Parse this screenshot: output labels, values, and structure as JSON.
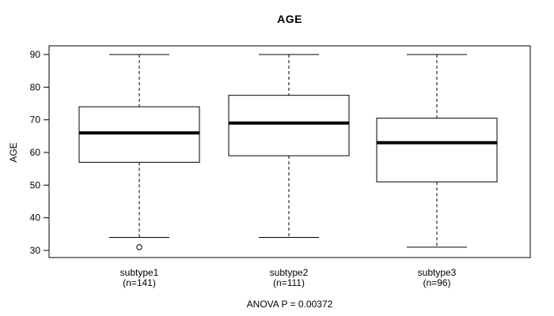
{
  "title": "AGE",
  "colors": {
    "background": "#ffffff",
    "line": "#000000",
    "text": "#000000",
    "box_fill": "#ffffff"
  },
  "chart_data": {
    "type": "boxplot",
    "title": "AGE",
    "xlabel": "",
    "ylabel": "AGE",
    "ylim": [
      28,
      92
    ],
    "yticks": [
      30,
      40,
      50,
      60,
      70,
      80,
      90
    ],
    "grid": false,
    "legend": null,
    "annotation": "ANOVA P = 0.00372",
    "groups": [
      {
        "label": "subtype1",
        "sublabel": "(n=141)",
        "n": 141,
        "whisker_low": 34,
        "q1": 57,
        "median": 66,
        "q3": 74,
        "whisker_high": 90,
        "outliers": [
          31
        ]
      },
      {
        "label": "subtype2",
        "sublabel": "(n=111)",
        "n": 111,
        "whisker_low": 34,
        "q1": 59,
        "median": 69,
        "q3": 77.5,
        "whisker_high": 90,
        "outliers": []
      },
      {
        "label": "subtype3",
        "sublabel": "(n=96)",
        "n": 96,
        "whisker_low": 31,
        "q1": 51,
        "median": 63,
        "q3": 70.5,
        "whisker_high": 90,
        "outliers": []
      }
    ]
  }
}
